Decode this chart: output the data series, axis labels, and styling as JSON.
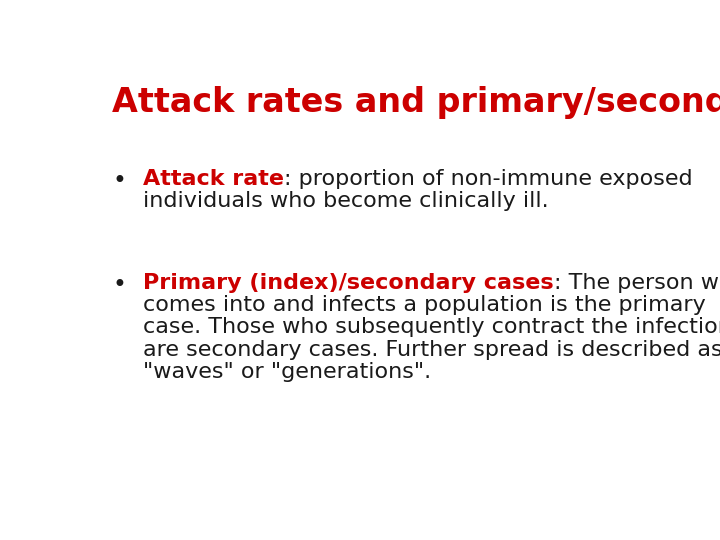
{
  "title": "Attack rates and primary/secondary cases",
  "title_color": "#CC0000",
  "title_fontsize": 24,
  "title_fontweight": "bold",
  "background_color": "#FFFFFF",
  "bullet1_label": "Attack rate",
  "bullet1_label_color": "#CC0000",
  "bullet1_label_fontweight": "bold",
  "bullet1_continuation": ": proportion of non-immune exposed",
  "bullet1_line2": "individuals who become clinically ill.",
  "bullet1_text_color": "#1a1a1a",
  "bullet2_label": "Primary (index)/secondary cases",
  "bullet2_label_color": "#CC0000",
  "bullet2_label_fontweight": "bold",
  "bullet2_continuation": ": The person who",
  "bullet2_line2": "comes into and infects a population is the primary",
  "bullet2_line3": "case. Those who subsequently contract the infection",
  "bullet2_line4": "are secondary cases. Further spread is described as",
  "bullet2_line5": "\"waves\" or \"generations\".",
  "bullet2_text_color": "#1a1a1a",
  "bullet_fontsize": 16,
  "bullet_color": "#1a1a1a",
  "figsize": [
    7.2,
    5.4
  ],
  "dpi": 100
}
